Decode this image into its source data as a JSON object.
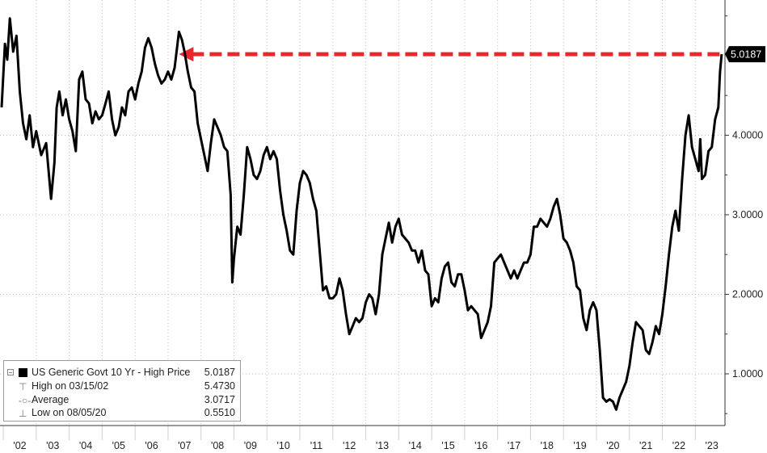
{
  "chart_data": {
    "type": "line",
    "x_tick_labels": [
      "'02",
      "'03",
      "'04",
      "'05",
      "'06",
      "'07",
      "'08",
      "'09",
      "'10",
      "'11",
      "'12",
      "'13",
      "'14",
      "'15",
      "'16",
      "'17",
      "'18",
      "'19",
      "'20",
      "'21",
      "'22",
      "'23"
    ],
    "y_tick_labels": [
      "1.0000",
      "2.0000",
      "3.0000",
      "4.0000"
    ],
    "ylim": [
      0.35,
      5.7
    ],
    "xlim": [
      2001.9,
      2023.9
    ],
    "current_value_label": "5.0187",
    "reference_line": {
      "from": "2007.33",
      "to": "2023.80",
      "value": 5.0187,
      "color": "#e8282e",
      "style": "dashed-arrow"
    },
    "series": [
      {
        "name": "US Generic Govt 10 Yr - High Price",
        "color": "#000000",
        "points": [
          [
            2001.95,
            4.35
          ],
          [
            2002.05,
            5.15
          ],
          [
            2002.12,
            4.95
          ],
          [
            2002.2,
            5.47
          ],
          [
            2002.3,
            5.05
          ],
          [
            2002.4,
            5.25
          ],
          [
            2002.5,
            4.55
          ],
          [
            2002.6,
            4.15
          ],
          [
            2002.7,
            3.95
          ],
          [
            2002.8,
            4.25
          ],
          [
            2002.9,
            3.85
          ],
          [
            2003.0,
            4.05
          ],
          [
            2003.15,
            3.75
          ],
          [
            2003.3,
            3.9
          ],
          [
            2003.45,
            3.2
          ],
          [
            2003.55,
            3.65
          ],
          [
            2003.62,
            4.35
          ],
          [
            2003.7,
            4.55
          ],
          [
            2003.8,
            4.25
          ],
          [
            2003.9,
            4.45
          ],
          [
            2004.0,
            4.2
          ],
          [
            2004.1,
            4.05
          ],
          [
            2004.2,
            3.8
          ],
          [
            2004.3,
            4.7
          ],
          [
            2004.4,
            4.8
          ],
          [
            2004.5,
            4.45
          ],
          [
            2004.6,
            4.4
          ],
          [
            2004.7,
            4.15
          ],
          [
            2004.8,
            4.3
          ],
          [
            2004.9,
            4.2
          ],
          [
            2005.0,
            4.25
          ],
          [
            2005.1,
            4.4
          ],
          [
            2005.2,
            4.55
          ],
          [
            2005.3,
            4.2
          ],
          [
            2005.4,
            4.0
          ],
          [
            2005.5,
            4.1
          ],
          [
            2005.6,
            4.35
          ],
          [
            2005.7,
            4.25
          ],
          [
            2005.8,
            4.55
          ],
          [
            2005.9,
            4.6
          ],
          [
            2006.0,
            4.45
          ],
          [
            2006.1,
            4.65
          ],
          [
            2006.2,
            4.8
          ],
          [
            2006.3,
            5.1
          ],
          [
            2006.4,
            5.22
          ],
          [
            2006.5,
            5.1
          ],
          [
            2006.6,
            4.9
          ],
          [
            2006.7,
            4.75
          ],
          [
            2006.8,
            4.65
          ],
          [
            2006.9,
            4.7
          ],
          [
            2007.0,
            4.8
          ],
          [
            2007.1,
            4.7
          ],
          [
            2007.2,
            4.85
          ],
          [
            2007.33,
            5.3
          ],
          [
            2007.42,
            5.2
          ],
          [
            2007.5,
            5.05
          ],
          [
            2007.6,
            4.8
          ],
          [
            2007.7,
            4.6
          ],
          [
            2007.8,
            4.55
          ],
          [
            2007.9,
            4.15
          ],
          [
            2008.0,
            3.95
          ],
          [
            2008.1,
            3.75
          ],
          [
            2008.2,
            3.55
          ],
          [
            2008.3,
            3.9
          ],
          [
            2008.4,
            4.2
          ],
          [
            2008.5,
            4.1
          ],
          [
            2008.6,
            4.0
          ],
          [
            2008.7,
            3.85
          ],
          [
            2008.8,
            3.8
          ],
          [
            2008.9,
            3.25
          ],
          [
            2008.95,
            2.15
          ],
          [
            2009.0,
            2.45
          ],
          [
            2009.1,
            2.85
          ],
          [
            2009.2,
            2.75
          ],
          [
            2009.3,
            3.25
          ],
          [
            2009.4,
            3.85
          ],
          [
            2009.5,
            3.7
          ],
          [
            2009.6,
            3.5
          ],
          [
            2009.7,
            3.45
          ],
          [
            2009.8,
            3.55
          ],
          [
            2009.9,
            3.75
          ],
          [
            2010.0,
            3.85
          ],
          [
            2010.1,
            3.7
          ],
          [
            2010.2,
            3.8
          ],
          [
            2010.3,
            3.7
          ],
          [
            2010.4,
            3.3
          ],
          [
            2010.5,
            3.0
          ],
          [
            2010.6,
            2.8
          ],
          [
            2010.7,
            2.55
          ],
          [
            2010.8,
            2.5
          ],
          [
            2010.9,
            3.05
          ],
          [
            2011.0,
            3.4
          ],
          [
            2011.1,
            3.55
          ],
          [
            2011.2,
            3.5
          ],
          [
            2011.3,
            3.4
          ],
          [
            2011.4,
            3.2
          ],
          [
            2011.5,
            3.05
          ],
          [
            2011.6,
            2.55
          ],
          [
            2011.7,
            2.05
          ],
          [
            2011.8,
            2.1
          ],
          [
            2011.9,
            1.95
          ],
          [
            2012.0,
            1.95
          ],
          [
            2012.1,
            2.0
          ],
          [
            2012.2,
            2.2
          ],
          [
            2012.3,
            2.05
          ],
          [
            2012.4,
            1.75
          ],
          [
            2012.5,
            1.5
          ],
          [
            2012.6,
            1.6
          ],
          [
            2012.7,
            1.7
          ],
          [
            2012.8,
            1.65
          ],
          [
            2012.9,
            1.7
          ],
          [
            2013.0,
            1.9
          ],
          [
            2013.1,
            2.0
          ],
          [
            2013.2,
            1.95
          ],
          [
            2013.3,
            1.75
          ],
          [
            2013.4,
            2.0
          ],
          [
            2013.5,
            2.5
          ],
          [
            2013.6,
            2.7
          ],
          [
            2013.7,
            2.9
          ],
          [
            2013.8,
            2.65
          ],
          [
            2013.9,
            2.85
          ],
          [
            2014.0,
            2.95
          ],
          [
            2014.1,
            2.75
          ],
          [
            2014.2,
            2.7
          ],
          [
            2014.3,
            2.65
          ],
          [
            2014.4,
            2.55
          ],
          [
            2014.5,
            2.55
          ],
          [
            2014.6,
            2.4
          ],
          [
            2014.7,
            2.55
          ],
          [
            2014.8,
            2.3
          ],
          [
            2014.9,
            2.25
          ],
          [
            2015.0,
            1.85
          ],
          [
            2015.1,
            1.95
          ],
          [
            2015.2,
            1.9
          ],
          [
            2015.3,
            2.2
          ],
          [
            2015.4,
            2.35
          ],
          [
            2015.5,
            2.4
          ],
          [
            2015.6,
            2.15
          ],
          [
            2015.7,
            2.1
          ],
          [
            2015.8,
            2.25
          ],
          [
            2015.9,
            2.25
          ],
          [
            2016.0,
            2.05
          ],
          [
            2016.1,
            1.8
          ],
          [
            2016.2,
            1.85
          ],
          [
            2016.3,
            1.8
          ],
          [
            2016.4,
            1.75
          ],
          [
            2016.5,
            1.45
          ],
          [
            2016.6,
            1.55
          ],
          [
            2016.7,
            1.65
          ],
          [
            2016.8,
            1.85
          ],
          [
            2016.9,
            2.4
          ],
          [
            2017.0,
            2.45
          ],
          [
            2017.1,
            2.5
          ],
          [
            2017.2,
            2.4
          ],
          [
            2017.3,
            2.3
          ],
          [
            2017.4,
            2.2
          ],
          [
            2017.5,
            2.3
          ],
          [
            2017.6,
            2.2
          ],
          [
            2017.7,
            2.3
          ],
          [
            2017.8,
            2.4
          ],
          [
            2017.9,
            2.4
          ],
          [
            2018.0,
            2.5
          ],
          [
            2018.1,
            2.85
          ],
          [
            2018.2,
            2.85
          ],
          [
            2018.3,
            2.95
          ],
          [
            2018.4,
            2.9
          ],
          [
            2018.5,
            2.85
          ],
          [
            2018.6,
            2.95
          ],
          [
            2018.7,
            3.1
          ],
          [
            2018.8,
            3.2
          ],
          [
            2018.9,
            3.0
          ],
          [
            2019.0,
            2.7
          ],
          [
            2019.1,
            2.65
          ],
          [
            2019.2,
            2.55
          ],
          [
            2019.3,
            2.4
          ],
          [
            2019.4,
            2.1
          ],
          [
            2019.5,
            2.05
          ],
          [
            2019.6,
            1.7
          ],
          [
            2019.7,
            1.55
          ],
          [
            2019.8,
            1.8
          ],
          [
            2019.9,
            1.9
          ],
          [
            2020.0,
            1.8
          ],
          [
            2020.1,
            1.3
          ],
          [
            2020.2,
            0.7
          ],
          [
            2020.3,
            0.65
          ],
          [
            2020.4,
            0.68
          ],
          [
            2020.5,
            0.65
          ],
          [
            2020.6,
            0.55
          ],
          [
            2020.7,
            0.7
          ],
          [
            2020.8,
            0.8
          ],
          [
            2020.9,
            0.9
          ],
          [
            2021.0,
            1.1
          ],
          [
            2021.1,
            1.4
          ],
          [
            2021.2,
            1.65
          ],
          [
            2021.3,
            1.6
          ],
          [
            2021.4,
            1.55
          ],
          [
            2021.5,
            1.3
          ],
          [
            2021.6,
            1.25
          ],
          [
            2021.7,
            1.4
          ],
          [
            2021.8,
            1.6
          ],
          [
            2021.9,
            1.5
          ],
          [
            2022.0,
            1.75
          ],
          [
            2022.1,
            2.1
          ],
          [
            2022.2,
            2.5
          ],
          [
            2022.3,
            2.85
          ],
          [
            2022.4,
            3.05
          ],
          [
            2022.5,
            2.8
          ],
          [
            2022.6,
            3.45
          ],
          [
            2022.7,
            4.0
          ],
          [
            2022.8,
            4.25
          ],
          [
            2022.9,
            3.85
          ],
          [
            2023.0,
            3.7
          ],
          [
            2023.1,
            3.55
          ],
          [
            2023.15,
            3.95
          ],
          [
            2023.2,
            3.45
          ],
          [
            2023.3,
            3.5
          ],
          [
            2023.4,
            3.8
          ],
          [
            2023.5,
            3.85
          ],
          [
            2023.6,
            4.2
          ],
          [
            2023.7,
            4.35
          ],
          [
            2023.75,
            4.8
          ],
          [
            2023.8,
            5.0187
          ]
        ]
      }
    ]
  },
  "legend": {
    "title": "US Generic Govt 10 Yr - High Price",
    "title_value": "5.0187",
    "high_label": "High on 03/15/02",
    "high_value": "5.4730",
    "avg_label": "Average",
    "avg_value": "3.0717",
    "low_label": "Low on 08/05/20",
    "low_value": "0.5510"
  }
}
